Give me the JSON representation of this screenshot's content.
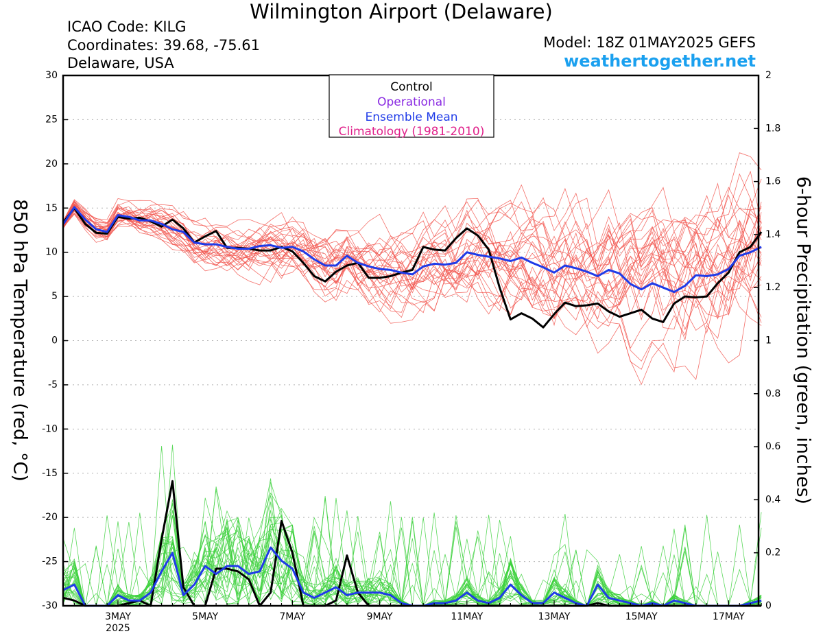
{
  "header": {
    "title": "Wilmington Airport (Delaware)",
    "icao": "ICAO Code: KILG",
    "coordinates": "Coordinates: 39.68, -75.61",
    "region": "Delaware, USA",
    "model": "Model: 18Z 01MAY2025 GEFS",
    "site": "weathertogether.net"
  },
  "colors": {
    "control": "#000000",
    "operational": "#8a2be2",
    "ensemble_mean": "#1f3be8",
    "climatology": "#e0208a",
    "members_temp": "#f2564f",
    "members_precip": "#3dd13d"
  },
  "chart_data": {
    "type": "line",
    "title": "Wilmington Airport (Delaware)",
    "xlabel": "",
    "ylabel": "850 hPa Temperature (red, °C)",
    "y2label": "6-hour Precipitation (green, inches)",
    "x_ticks": [
      "3MAY",
      "5MAY",
      "7MAY",
      "9MAY",
      "11MAY",
      "13MAY",
      "15MAY",
      "17MAY"
    ],
    "x_subtick": "2025",
    "x_range": [
      "2025-05-01 18Z",
      "2025-05-17 18Z"
    ],
    "step_hours": 6,
    "ylim": [
      -30,
      30
    ],
    "y_ticks": [
      30,
      25,
      20,
      15,
      10,
      5,
      0,
      -5,
      -10,
      -15,
      -20,
      -25,
      -30
    ],
    "y2lim": [
      0,
      2
    ],
    "y2_ticks": [
      "2",
      "1.8",
      "1.6",
      "1.4",
      "1.2",
      "1",
      "0.8",
      "0.6",
      "0.4",
      "0.2",
      "0"
    ],
    "grid": true,
    "legend": {
      "placement": "top-center",
      "items": [
        "Control",
        "Operational",
        "Ensemble Mean",
        "Climatology (1981-2010)"
      ]
    },
    "series": [
      {
        "name": "Control",
        "axis": "temperature",
        "values": [
          13.4,
          15.0,
          13.2,
          12.2,
          12.1,
          14.0,
          13.8,
          13.9,
          13.5,
          12.9,
          13.7,
          12.7,
          11.1,
          11.8,
          12.4,
          10.5,
          10.5,
          10.4,
          10.2,
          10.2,
          10.6,
          10.1,
          8.8,
          7.3,
          6.7,
          7.8,
          8.5,
          8.8,
          7.1,
          7.1,
          7.3,
          7.7,
          8.0,
          10.6,
          10.3,
          10.2,
          11.6,
          12.7,
          11.9,
          10.3,
          6.0,
          2.4,
          3.1,
          2.5,
          1.5,
          3.0,
          4.3,
          3.9,
          4.0,
          4.2,
          3.3,
          2.7,
          3.1,
          3.5,
          2.5,
          2.1,
          4.2,
          5.0,
          4.9,
          5.0,
          6.5,
          7.7,
          10.0,
          10.6,
          12.3
        ]
      },
      {
        "name": "Ensemble Mean",
        "axis": "temperature",
        "values": [
          13.2,
          15.1,
          13.7,
          12.6,
          12.3,
          14.2,
          14.0,
          13.6,
          13.6,
          13.2,
          12.6,
          12.3,
          11.1,
          10.9,
          10.9,
          10.6,
          10.4,
          10.4,
          10.7,
          10.8,
          10.5,
          10.6,
          10.1,
          9.2,
          8.5,
          8.5,
          9.6,
          8.8,
          8.4,
          8.1,
          8.0,
          7.7,
          7.5,
          8.4,
          8.7,
          8.6,
          8.8,
          10.0,
          9.7,
          9.5,
          9.3,
          9.0,
          9.4,
          8.8,
          8.3,
          7.7,
          8.5,
          8.2,
          7.8,
          7.3,
          8.0,
          7.6,
          6.4,
          5.8,
          6.5,
          6.0,
          5.5,
          6.2,
          7.4,
          7.3,
          7.5,
          8.1,
          9.6,
          10.0,
          10.6
        ]
      },
      {
        "name": "Control precipitation",
        "axis": "precipitation",
        "values": [
          0.03,
          0.02,
          0.0,
          0.0,
          0.0,
          0.0,
          0.01,
          0.02,
          0.0,
          0.25,
          0.47,
          0.07,
          0.0,
          0.0,
          0.14,
          0.14,
          0.13,
          0.1,
          0.0,
          0.05,
          0.32,
          0.2,
          0.0,
          0.0,
          0.0,
          0.02,
          0.19,
          0.05,
          0.0,
          0.0,
          0.0,
          0.0,
          0.0,
          0.0,
          0.0,
          0.0,
          0.0,
          0.0,
          0.0,
          0.0,
          0.0,
          0.0,
          0.0,
          0.0,
          0.0,
          0.0,
          0.0,
          0.0,
          0.0,
          0.01,
          0.0,
          0.0,
          0.0,
          0.0,
          0.0,
          0.0,
          0.0,
          0.0,
          0.0,
          0.0,
          0.0,
          0.0,
          0.0,
          0.0,
          0.0
        ]
      },
      {
        "name": "Ensemble Mean precipitation",
        "axis": "precipitation",
        "values": [
          0.06,
          0.08,
          0.0,
          0.0,
          0.0,
          0.04,
          0.02,
          0.02,
          0.05,
          0.13,
          0.2,
          0.04,
          0.08,
          0.15,
          0.12,
          0.15,
          0.15,
          0.12,
          0.13,
          0.22,
          0.17,
          0.14,
          0.05,
          0.03,
          0.05,
          0.07,
          0.04,
          0.05,
          0.05,
          0.05,
          0.04,
          0.01,
          0.0,
          0.0,
          0.01,
          0.01,
          0.02,
          0.05,
          0.02,
          0.01,
          0.03,
          0.08,
          0.04,
          0.01,
          0.01,
          0.05,
          0.03,
          0.01,
          0.0,
          0.08,
          0.03,
          0.02,
          0.01,
          0.0,
          0.01,
          0.0,
          0.02,
          0.01,
          0.0,
          0.0,
          0.0,
          0.0,
          0.0,
          0.01,
          0.02
        ]
      }
    ]
  }
}
